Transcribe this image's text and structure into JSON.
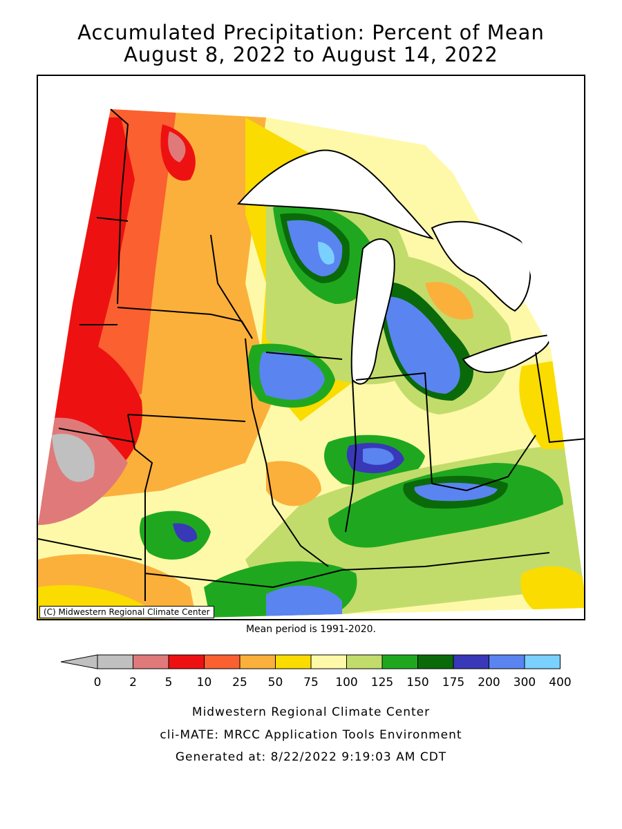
{
  "map": {
    "title": "Accumulated Precipitation: Percent of Mean",
    "subtitle": "August 8, 2022 to August 14, 2022",
    "copyright": "(C) Midwestern Regional Climate Center",
    "mean_note": "Mean period is 1991-2020."
  },
  "legend": {
    "tick_labels": [
      "0",
      "2",
      "5",
      "10",
      "25",
      "50",
      "75",
      "100",
      "125",
      "150",
      "175",
      "200",
      "300",
      "400"
    ],
    "colors": [
      "#c0c0c0",
      "#e07a7a",
      "#ee1111",
      "#fa6030",
      "#fbb03b",
      "#fadc00",
      "#fdf9a8",
      "#c2dc6c",
      "#1fa81f",
      "#0a6a0a",
      "#3838b8",
      "#5a84f0",
      "#7ad0ff"
    ]
  },
  "footer": {
    "line1": "Midwestern Regional Climate Center",
    "line2": "cli-MATE: MRCC Application Tools Environment",
    "line3": "Generated at: 8/22/2022 9:19:03 AM CDT"
  }
}
